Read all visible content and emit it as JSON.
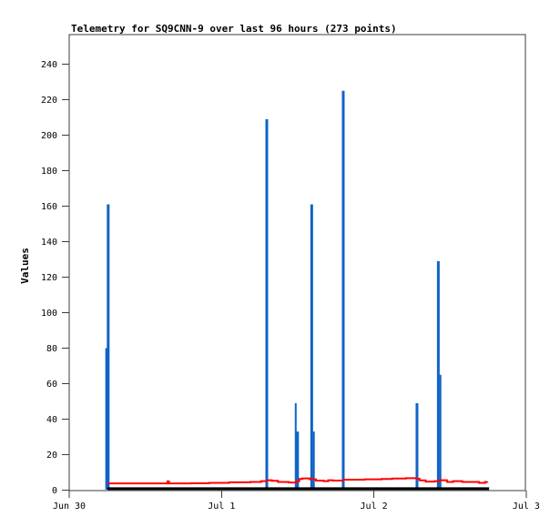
{
  "chart": {
    "title": "Telemetry for SQ9CNN-9 over last 96 hours (273 points)",
    "ylabel": "Values"
  },
  "chart_data": {
    "type": "line",
    "title": "Telemetry for SQ9CNN-9 over last 96 hours (273 points)",
    "ylabel": "Values",
    "xlabel": "",
    "grid": false,
    "legend": "none",
    "x_axis": {
      "unit": "days-from-Jun-30",
      "range": [
        0,
        3
      ],
      "ticks": [
        {
          "pos": 0,
          "label": "Jun 30"
        },
        {
          "pos": 1,
          "label": "Jul 1"
        },
        {
          "pos": 2,
          "label": "Jul 2"
        },
        {
          "pos": 3,
          "label": "Jul 3"
        }
      ]
    },
    "y_axis": {
      "min": 0,
      "max": 240,
      "step": 20,
      "plot_top_value": 256
    },
    "series": [
      {
        "name": "blue-spike-channel",
        "type": "spike",
        "color": "#0f63c8",
        "points": [
          [
            0.243,
            80,
            2
          ],
          [
            0.256,
            161,
            3
          ],
          [
            1.297,
            209,
            3
          ],
          [
            1.487,
            49,
            2
          ],
          [
            1.499,
            33,
            3
          ],
          [
            1.592,
            161,
            3
          ],
          [
            1.606,
            33,
            2
          ],
          [
            1.799,
            225,
            3
          ],
          [
            2.283,
            49,
            3
          ],
          [
            2.423,
            129,
            3
          ],
          [
            2.437,
            65,
            2
          ]
        ]
      },
      {
        "name": "red-line-channel",
        "type": "step-line",
        "color": "#ff0000",
        "stroke_width": 2,
        "points": [
          [
            0.251,
            3.8
          ],
          [
            0.44,
            3.8
          ],
          [
            0.64,
            3.8
          ],
          [
            0.645,
            4.9
          ],
          [
            0.655,
            3.8
          ],
          [
            0.8,
            3.9
          ],
          [
            0.92,
            4.1
          ],
          [
            1.05,
            4.4
          ],
          [
            1.19,
            4.6
          ],
          [
            1.26,
            5.1
          ],
          [
            1.3,
            5.6
          ],
          [
            1.33,
            5.3
          ],
          [
            1.37,
            4.6
          ],
          [
            1.44,
            4.3
          ],
          [
            1.49,
            5.0
          ],
          [
            1.51,
            6.3
          ],
          [
            1.53,
            6.6
          ],
          [
            1.58,
            6.1
          ],
          [
            1.62,
            5.4
          ],
          [
            1.67,
            5.1
          ],
          [
            1.7,
            5.6
          ],
          [
            1.73,
            5.4
          ],
          [
            1.8,
            5.9
          ],
          [
            1.94,
            6.1
          ],
          [
            2.05,
            6.3
          ],
          [
            2.12,
            6.5
          ],
          [
            2.21,
            6.7
          ],
          [
            2.28,
            6.4
          ],
          [
            2.3,
            5.5
          ],
          [
            2.34,
            4.8
          ],
          [
            2.4,
            5.1
          ],
          [
            2.43,
            5.6
          ],
          [
            2.48,
            4.6
          ],
          [
            2.52,
            5.1
          ],
          [
            2.58,
            4.6
          ],
          [
            2.64,
            4.6
          ],
          [
            2.69,
            4.1
          ],
          [
            2.73,
            4.6
          ],
          [
            2.744,
            4.8
          ]
        ]
      },
      {
        "name": "black-line-channel",
        "type": "step-line",
        "color": "#000000",
        "stroke_width": 3,
        "points": [
          [
            0.251,
            0.8
          ],
          [
            2.756,
            0.8
          ]
        ]
      }
    ]
  },
  "colors": {
    "spike_blue": "#0f63c8",
    "line_red": "#ff0000",
    "line_black": "#000000",
    "border": "#3c3c3c",
    "background": "#ffffff"
  }
}
